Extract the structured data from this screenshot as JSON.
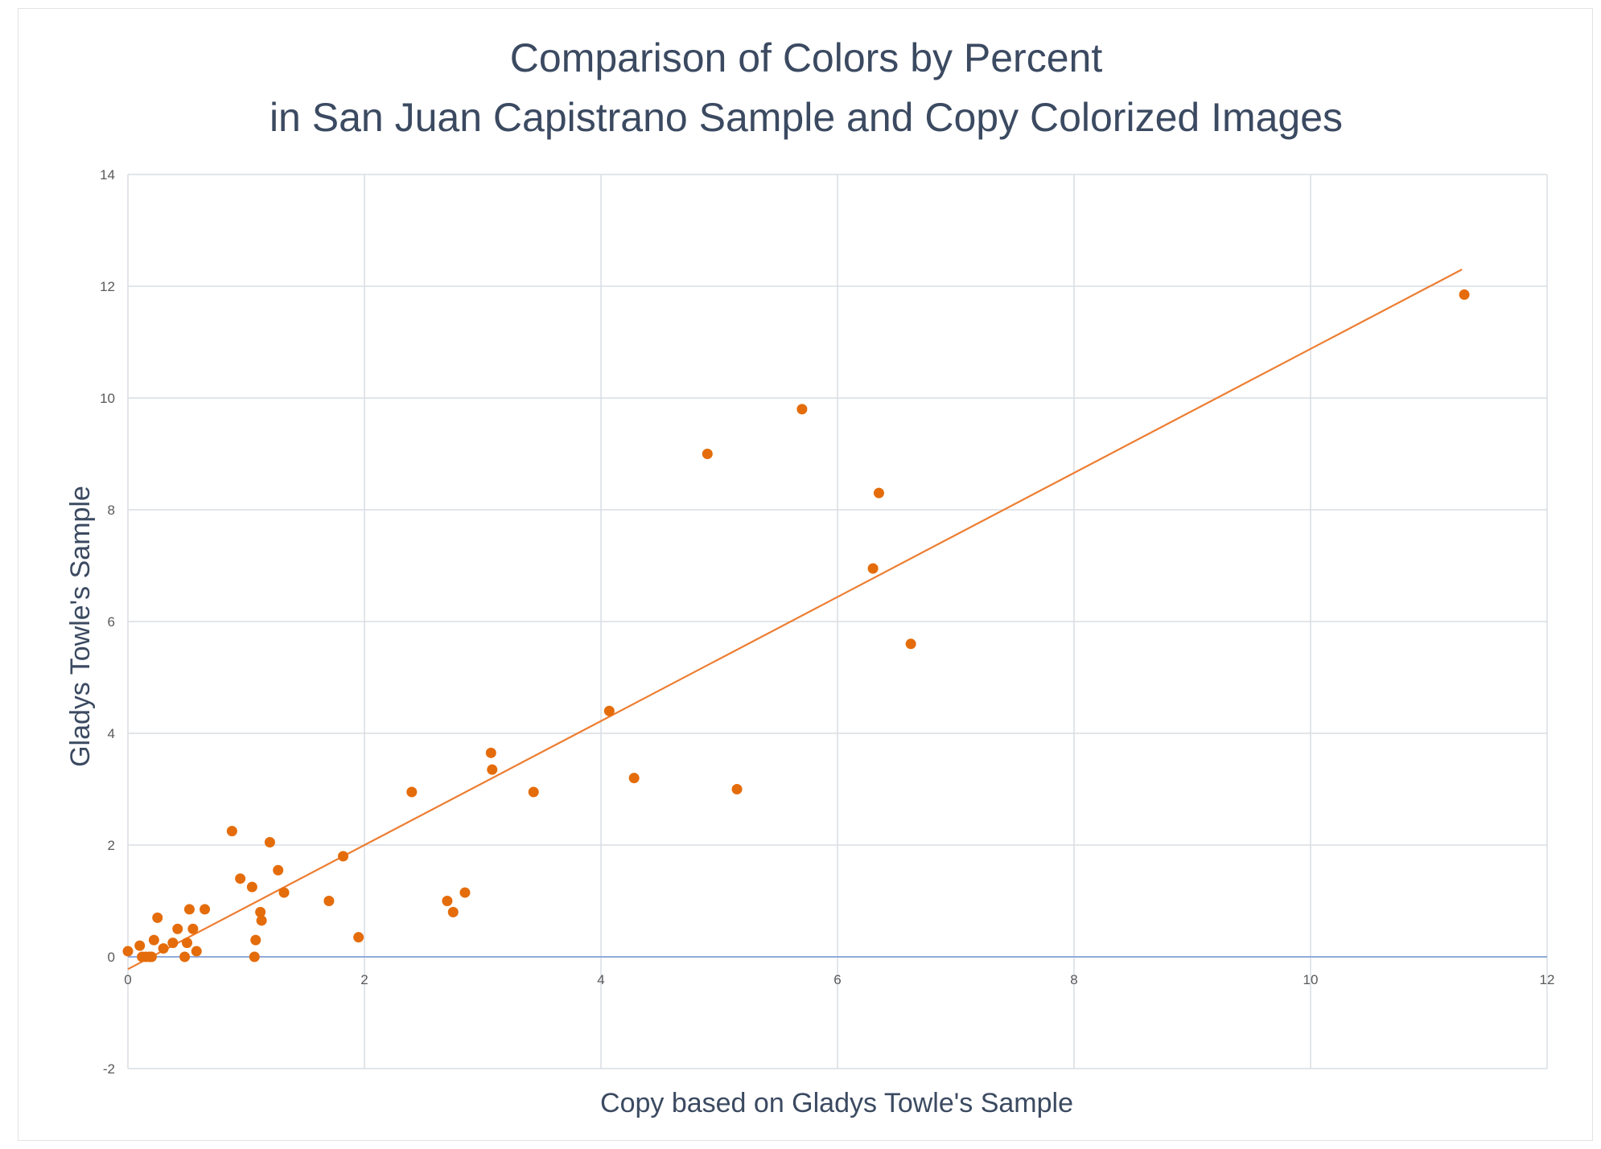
{
  "chart_data": {
    "type": "scatter",
    "title": [
      "Comparison of Colors by Percent",
      "in San Juan Capistrano Sample and Copy Colorized Images"
    ],
    "xlabel": "Copy based on Gladys Towle's Sample",
    "ylabel": "Gladys Towle's Sample",
    "xlim": [
      0,
      12
    ],
    "ylim": [
      -2,
      14
    ],
    "xticks": [
      0,
      2,
      4,
      6,
      8,
      10,
      12
    ],
    "yticks": [
      -2,
      0,
      2,
      4,
      6,
      8,
      10,
      12,
      14
    ],
    "grid": true,
    "legend": "none",
    "colors": {
      "points": "#e46c0a",
      "trendline": "#ed7d31",
      "grid": "#d9dde3",
      "axis": "#8faadc"
    },
    "series": [
      {
        "x": [
          0.0,
          0.1,
          0.12,
          0.15,
          0.18,
          0.2,
          0.22,
          0.25,
          0.3,
          0.38,
          0.42,
          0.48,
          0.5,
          0.52,
          0.55,
          0.58,
          0.65,
          0.88,
          0.95,
          1.05,
          1.07,
          1.08,
          1.12,
          1.13,
          1.2,
          1.27,
          1.32,
          1.7,
          1.82,
          1.95,
          2.4,
          2.7,
          2.75,
          2.85,
          3.07,
          3.08,
          3.43,
          4.07,
          4.28,
          4.9,
          5.15,
          5.7,
          6.3,
          6.35,
          6.62,
          11.3
        ],
        "y": [
          0.1,
          0.2,
          0.0,
          0.0,
          0.0,
          0.0,
          0.3,
          0.7,
          0.15,
          0.25,
          0.5,
          0.0,
          0.25,
          0.85,
          0.5,
          0.1,
          0.85,
          2.25,
          1.4,
          1.25,
          0.0,
          0.3,
          0.8,
          0.65,
          2.05,
          1.55,
          1.15,
          1.0,
          1.8,
          0.35,
          2.95,
          1.0,
          0.8,
          1.15,
          3.65,
          3.35,
          2.95,
          4.4,
          3.2,
          9.0,
          3.0,
          9.8,
          6.95,
          8.3,
          5.6,
          11.85
        ]
      }
    ],
    "trendline": {
      "x": [
        0.0,
        11.28
      ],
      "y": [
        -0.22,
        12.3
      ]
    }
  }
}
